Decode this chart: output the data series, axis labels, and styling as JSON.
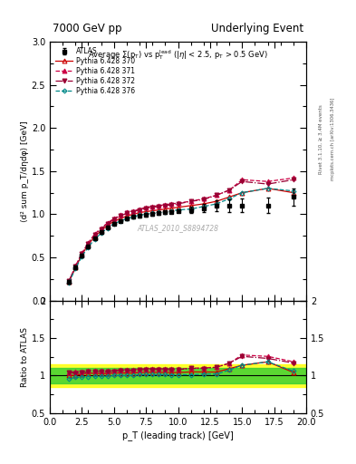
{
  "title_left": "7000 GeV pp",
  "title_right": "Underlying Event",
  "xlabel": "p_T (leading track) [GeV]",
  "ylabel_main": "⟨d² sum p_T/dηdφ⟩ [GeV]",
  "ylabel_ratio": "Ratio to ATLAS",
  "right_label": "mcplots.cern.ch [arXiv:1306.3436]",
  "right_label2": "Rivet 3.1.10, ≥ 3.4M events",
  "watermark": "ATLAS_2010_S8894728",
  "xlim": [
    0,
    20
  ],
  "ylim_main": [
    0,
    3
  ],
  "ylim_ratio": [
    0.5,
    2
  ],
  "atlas_x": [
    1.5,
    2.0,
    2.5,
    3.0,
    3.5,
    4.0,
    4.5,
    5.0,
    5.5,
    6.0,
    6.5,
    7.0,
    7.5,
    8.0,
    8.5,
    9.0,
    9.5,
    10.0,
    11.0,
    12.0,
    13.0,
    14.0,
    15.0,
    17.0,
    19.0
  ],
  "atlas_y": [
    0.22,
    0.38,
    0.52,
    0.63,
    0.72,
    0.79,
    0.85,
    0.89,
    0.92,
    0.95,
    0.97,
    0.98,
    0.99,
    1.0,
    1.01,
    1.02,
    1.03,
    1.04,
    1.05,
    1.07,
    1.1,
    1.1,
    1.1,
    1.1,
    1.2
  ],
  "atlas_yerr": [
    0.02,
    0.02,
    0.02,
    0.02,
    0.015,
    0.015,
    0.015,
    0.015,
    0.015,
    0.015,
    0.015,
    0.015,
    0.015,
    0.015,
    0.015,
    0.015,
    0.02,
    0.02,
    0.04,
    0.05,
    0.06,
    0.07,
    0.08,
    0.09,
    0.1
  ],
  "py370_x": [
    1.5,
    2.0,
    2.5,
    3.0,
    3.5,
    4.0,
    4.5,
    5.0,
    5.5,
    6.0,
    6.5,
    7.0,
    7.5,
    8.0,
    8.5,
    9.0,
    9.5,
    10.0,
    11.0,
    12.0,
    13.0,
    14.0,
    15.0,
    17.0,
    19.0
  ],
  "py370_y": [
    0.22,
    0.38,
    0.53,
    0.65,
    0.74,
    0.81,
    0.87,
    0.92,
    0.95,
    0.98,
    1.0,
    1.02,
    1.03,
    1.04,
    1.05,
    1.06,
    1.07,
    1.08,
    1.1,
    1.12,
    1.15,
    1.2,
    1.25,
    1.3,
    1.25
  ],
  "py371_x": [
    1.5,
    2.0,
    2.5,
    3.0,
    3.5,
    4.0,
    4.5,
    5.0,
    5.5,
    6.0,
    6.5,
    7.0,
    7.5,
    8.0,
    8.5,
    9.0,
    9.5,
    10.0,
    11.0,
    12.0,
    13.0,
    14.0,
    15.0,
    17.0,
    19.0
  ],
  "py371_y": [
    0.23,
    0.4,
    0.55,
    0.67,
    0.77,
    0.84,
    0.9,
    0.95,
    0.99,
    1.02,
    1.04,
    1.06,
    1.08,
    1.09,
    1.1,
    1.11,
    1.12,
    1.13,
    1.15,
    1.18,
    1.22,
    1.28,
    1.4,
    1.38,
    1.42
  ],
  "py372_x": [
    1.5,
    2.0,
    2.5,
    3.0,
    3.5,
    4.0,
    4.5,
    5.0,
    5.5,
    6.0,
    6.5,
    7.0,
    7.5,
    8.0,
    8.5,
    9.0,
    9.5,
    10.0,
    11.0,
    12.0,
    13.0,
    14.0,
    15.0,
    17.0,
    19.0
  ],
  "py372_y": [
    0.23,
    0.39,
    0.54,
    0.66,
    0.76,
    0.83,
    0.89,
    0.94,
    0.98,
    1.01,
    1.03,
    1.05,
    1.07,
    1.08,
    1.09,
    1.1,
    1.11,
    1.12,
    1.15,
    1.17,
    1.22,
    1.28,
    1.38,
    1.35,
    1.4
  ],
  "py376_x": [
    1.5,
    2.0,
    2.5,
    3.0,
    3.5,
    4.0,
    4.5,
    5.0,
    5.5,
    6.0,
    6.5,
    7.0,
    7.5,
    8.0,
    8.5,
    9.0,
    9.5,
    10.0,
    11.0,
    12.0,
    13.0,
    14.0,
    15.0,
    17.0,
    19.0
  ],
  "py376_y": [
    0.21,
    0.37,
    0.51,
    0.62,
    0.71,
    0.78,
    0.84,
    0.89,
    0.92,
    0.95,
    0.97,
    0.99,
    1.0,
    1.01,
    1.02,
    1.03,
    1.04,
    1.05,
    1.06,
    1.09,
    1.12,
    1.18,
    1.25,
    1.3,
    1.27
  ],
  "color_370": "#cc0000",
  "color_371": "#cc0044",
  "color_372": "#990033",
  "color_376": "#008888",
  "color_atlas": "#000000",
  "green_band_y1": 0.9,
  "green_band_y2": 1.1,
  "yellow_band_y1": 0.85,
  "yellow_band_y2": 1.15
}
